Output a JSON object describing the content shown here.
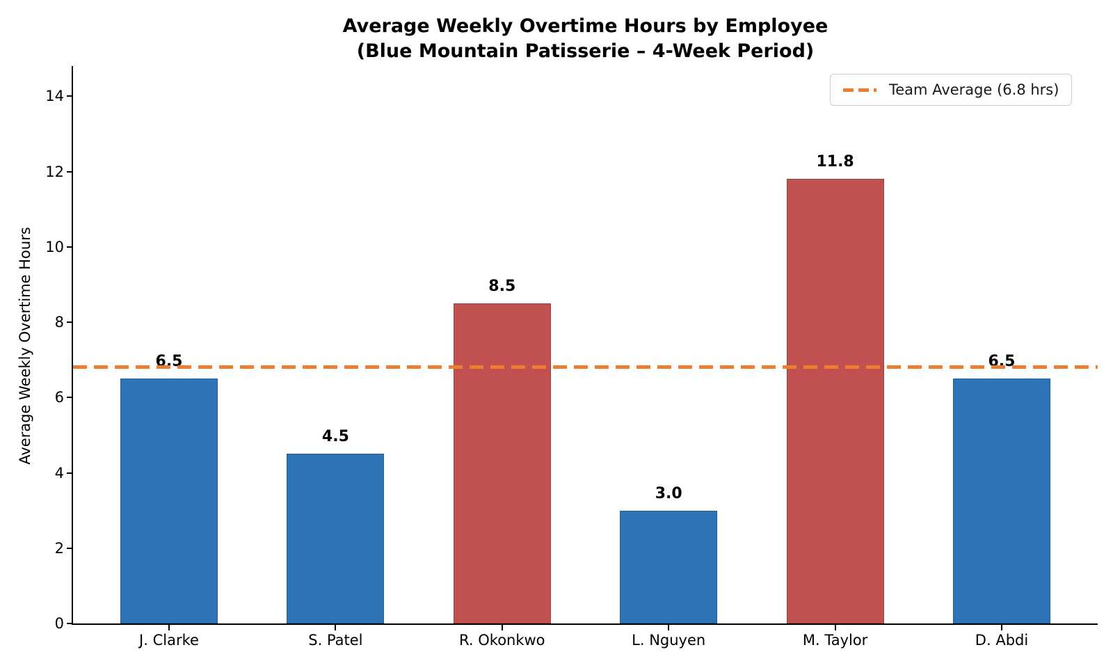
{
  "title": {
    "line1": "Average Weekly Overtime Hours by Employee",
    "line2": "(Blue Mountain Patisserie – 4-Week Period)"
  },
  "chart_data": {
    "type": "bar",
    "title": "Average Weekly Overtime Hours by Employee (Blue Mountain Patisserie – 4-Week Period)",
    "categories": [
      "J. Clarke",
      "S. Patel",
      "R. Okonkwo",
      "L. Nguyen",
      "M. Taylor",
      "D. Abdi"
    ],
    "values": [
      6.5,
      4.5,
      8.5,
      3.0,
      11.8,
      6.5
    ],
    "value_labels": [
      "6.5",
      "4.5",
      "8.5",
      "3.0",
      "11.8",
      "6.5"
    ],
    "bar_colors": [
      "#2e73b5",
      "#2e73b5",
      "#c05150",
      "#2e73b5",
      "#c05150",
      "#2e73b5"
    ],
    "xlabel": "",
    "ylabel": "Average Weekly Overtime Hours",
    "yticks": [
      "0",
      "2",
      "4",
      "6",
      "8",
      "10",
      "12",
      "14"
    ],
    "ylim": [
      0,
      14.8
    ],
    "grid": false,
    "legend_position": "upper right",
    "reference_line": {
      "value": 6.8,
      "label": "Team Average (6.8 hrs)",
      "color": "#ee7d2e",
      "style": "dashed"
    }
  },
  "colors": {
    "bar_blue": "#2e73b5",
    "bar_red": "#c05150",
    "average_line_orange": "#ee7d2e",
    "axis_black": "#000000",
    "legend_border_gray": "#cccccc"
  }
}
